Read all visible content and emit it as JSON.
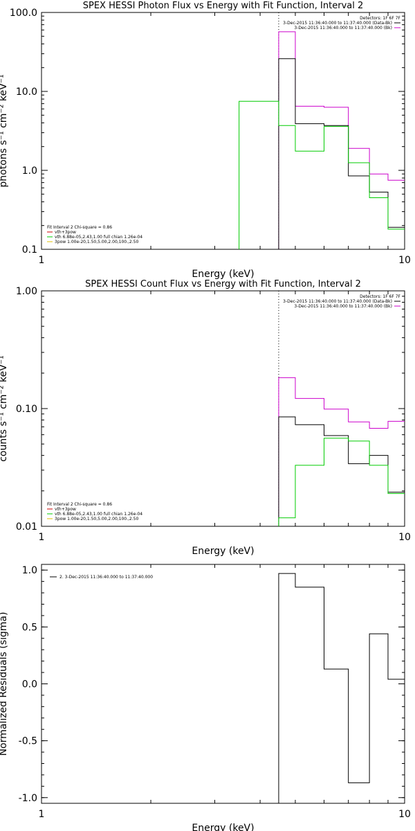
{
  "chart_data": [
    {
      "type": "line",
      "title": "SPEX HESSI Photon Flux vs Energy with Fit Function, Interval 2",
      "xlabel": "Energy (keV)",
      "ylabel": "photons s⁻¹ cm⁻² keV⁻¹",
      "xscale": "log",
      "yscale": "log",
      "xlim": [
        1,
        10
      ],
      "ylim": [
        0.1,
        100
      ],
      "xticks": [
        "1",
        "10"
      ],
      "yticks": [
        {
          "v": 0.1,
          "label": "0.1"
        },
        {
          "v": 1,
          "label": "1.0"
        },
        {
          "v": 10,
          "label": "10.0"
        },
        {
          "v": 100,
          "label": "100.0"
        }
      ],
      "vline": 4.5,
      "legend_top": [
        {
          "text": "Detectors: 1F 6F 7F",
          "color": ""
        },
        {
          "text": "3-Dec-2015 11:36:40.000 to 11:37:40.000 (Data-Bk)",
          "color": "#000000"
        },
        {
          "text": "3-Dec-2015 11:36:40.000 to 11:37:40.000 (Bk)",
          "color": "#cc00cc"
        }
      ],
      "legend_bottom": [
        {
          "text": "Fit Interval 2   Chi-square = 0.86",
          "color": ""
        },
        {
          "text": "vth+3pow",
          "color": "#cc0000"
        },
        {
          "text": "vth 6.88e-05,2.43,1.00  full chian 1.26e-04",
          "color": "#00cc00"
        },
        {
          "text": "3pow 1.00e-20,1.50,5.00,2.00,100.,2.50",
          "color": "#e0c000"
        }
      ],
      "series": [
        {
          "name": "3-Dec-2015 11:36:40.000 to 11:37:40.000 (Bk)",
          "color": "#cc00cc",
          "edges": [
            4.5,
            5,
            6,
            7,
            8,
            9,
            10
          ],
          "values": [
            57,
            6.5,
            6.3,
            1.9,
            0.9,
            0.75
          ]
        },
        {
          "name": "3-Dec-2015 11:36:40.000 to 11:37:40.000 (Data-Bk)",
          "color": "#000000",
          "edges": [
            4.5,
            5,
            6,
            7,
            8,
            9,
            10
          ],
          "values": [
            26,
            3.9,
            3.7,
            0.85,
            0.53,
            0.19
          ]
        },
        {
          "name": "vth 6.88e-05,2.43,1.00  full chian 1.26e-04",
          "color": "#00cc00",
          "edges": [
            3.5,
            4.5,
            5,
            6,
            7,
            8,
            9,
            10
          ],
          "values": [
            7.5,
            3.7,
            1.75,
            3.6,
            1.25,
            0.45,
            0.18
          ],
          "drop_start": true
        }
      ]
    },
    {
      "type": "line",
      "title": "SPEX HESSI Count Flux vs Energy with Fit Function, Interval 2",
      "xlabel": "Energy (keV)",
      "ylabel": "counts s⁻¹ cm⁻² keV⁻¹",
      "xscale": "log",
      "yscale": "log",
      "xlim": [
        1,
        10
      ],
      "ylim": [
        0.01,
        1
      ],
      "xticks": [
        "1",
        "10"
      ],
      "yticks": [
        {
          "v": 0.01,
          "label": "0.01"
        },
        {
          "v": 0.1,
          "label": "0.10"
        },
        {
          "v": 1,
          "label": "1.00"
        }
      ],
      "vline": 4.5,
      "legend_top": [
        {
          "text": "Detectors: 1F 6F 7F",
          "color": ""
        },
        {
          "text": "3-Dec-2015 11:36:40.000 to 11:37:40.000 (Data-Bk)",
          "color": "#000000"
        },
        {
          "text": "3-Dec-2015 11:36:40.000 to 11:37:40.000 (Bk)",
          "color": "#cc00cc"
        }
      ],
      "legend_bottom": [
        {
          "text": "Fit Interval 2   Chi-square = 0.86",
          "color": ""
        },
        {
          "text": "vth+3pow",
          "color": "#cc0000"
        },
        {
          "text": "vth 6.88e-05,2.43,1.00  full chian 1.26e-04",
          "color": "#00cc00"
        },
        {
          "text": "3pow 1.00e-20,1.50,5.00,2.00,100.,2.50",
          "color": "#e0c000"
        }
      ],
      "series": [
        {
          "name": "3-Dec-2015 11:36:40.000 to 11:37:40.000 (Bk)",
          "color": "#cc00cc",
          "edges": [
            4.5,
            5,
            6,
            7,
            8,
            9,
            10
          ],
          "values": [
            0.183,
            0.122,
            0.099,
            0.077,
            0.068,
            0.078
          ]
        },
        {
          "name": "3-Dec-2015 11:36:40.000 to 11:37:40.000 (Data-Bk)",
          "color": "#000000",
          "edges": [
            4.5,
            5,
            6,
            7,
            8,
            9,
            10
          ],
          "values": [
            0.085,
            0.073,
            0.059,
            0.034,
            0.04,
            0.0195
          ]
        },
        {
          "name": "vth 6.88e-05,2.43,1.00  full chian 1.26e-04",
          "color": "#00cc00",
          "edges": [
            4.5,
            5,
            6,
            7,
            8,
            9,
            10
          ],
          "values": [
            0.0118,
            0.033,
            0.056,
            0.053,
            0.033,
            0.019
          ]
        }
      ]
    },
    {
      "type": "line",
      "title": "",
      "xlabel": "Energy (keV)",
      "ylabel": "Normalized Residuals (sigma)",
      "xscale": "log",
      "yscale": "linear",
      "xlim": [
        1,
        10
      ],
      "ylim": [
        -1.05,
        1.05
      ],
      "xticks": [
        "1",
        "10"
      ],
      "yticks": [
        {
          "v": 1,
          "label": "1.0"
        },
        {
          "v": 0.5,
          "label": "0.5"
        },
        {
          "v": 0,
          "label": "0.0"
        },
        {
          "v": -0.5,
          "label": "-0.5"
        },
        {
          "v": -1,
          "label": "-1.0"
        }
      ],
      "legend_top": [
        {
          "text": "2.  3-Dec-2015 11:36:40.000 to 11:37:40.000",
          "color": "#000000"
        }
      ],
      "series": [
        {
          "name": "2.  3-Dec-2015 11:36:40.000 to 11:37:40.000",
          "color": "#000000",
          "edges": [
            4.5,
            5,
            6,
            7,
            8,
            9,
            10
          ],
          "values": [
            0.97,
            0.85,
            0.13,
            -0.87,
            0.44,
            0.04
          ],
          "from_axis": true
        }
      ]
    }
  ]
}
